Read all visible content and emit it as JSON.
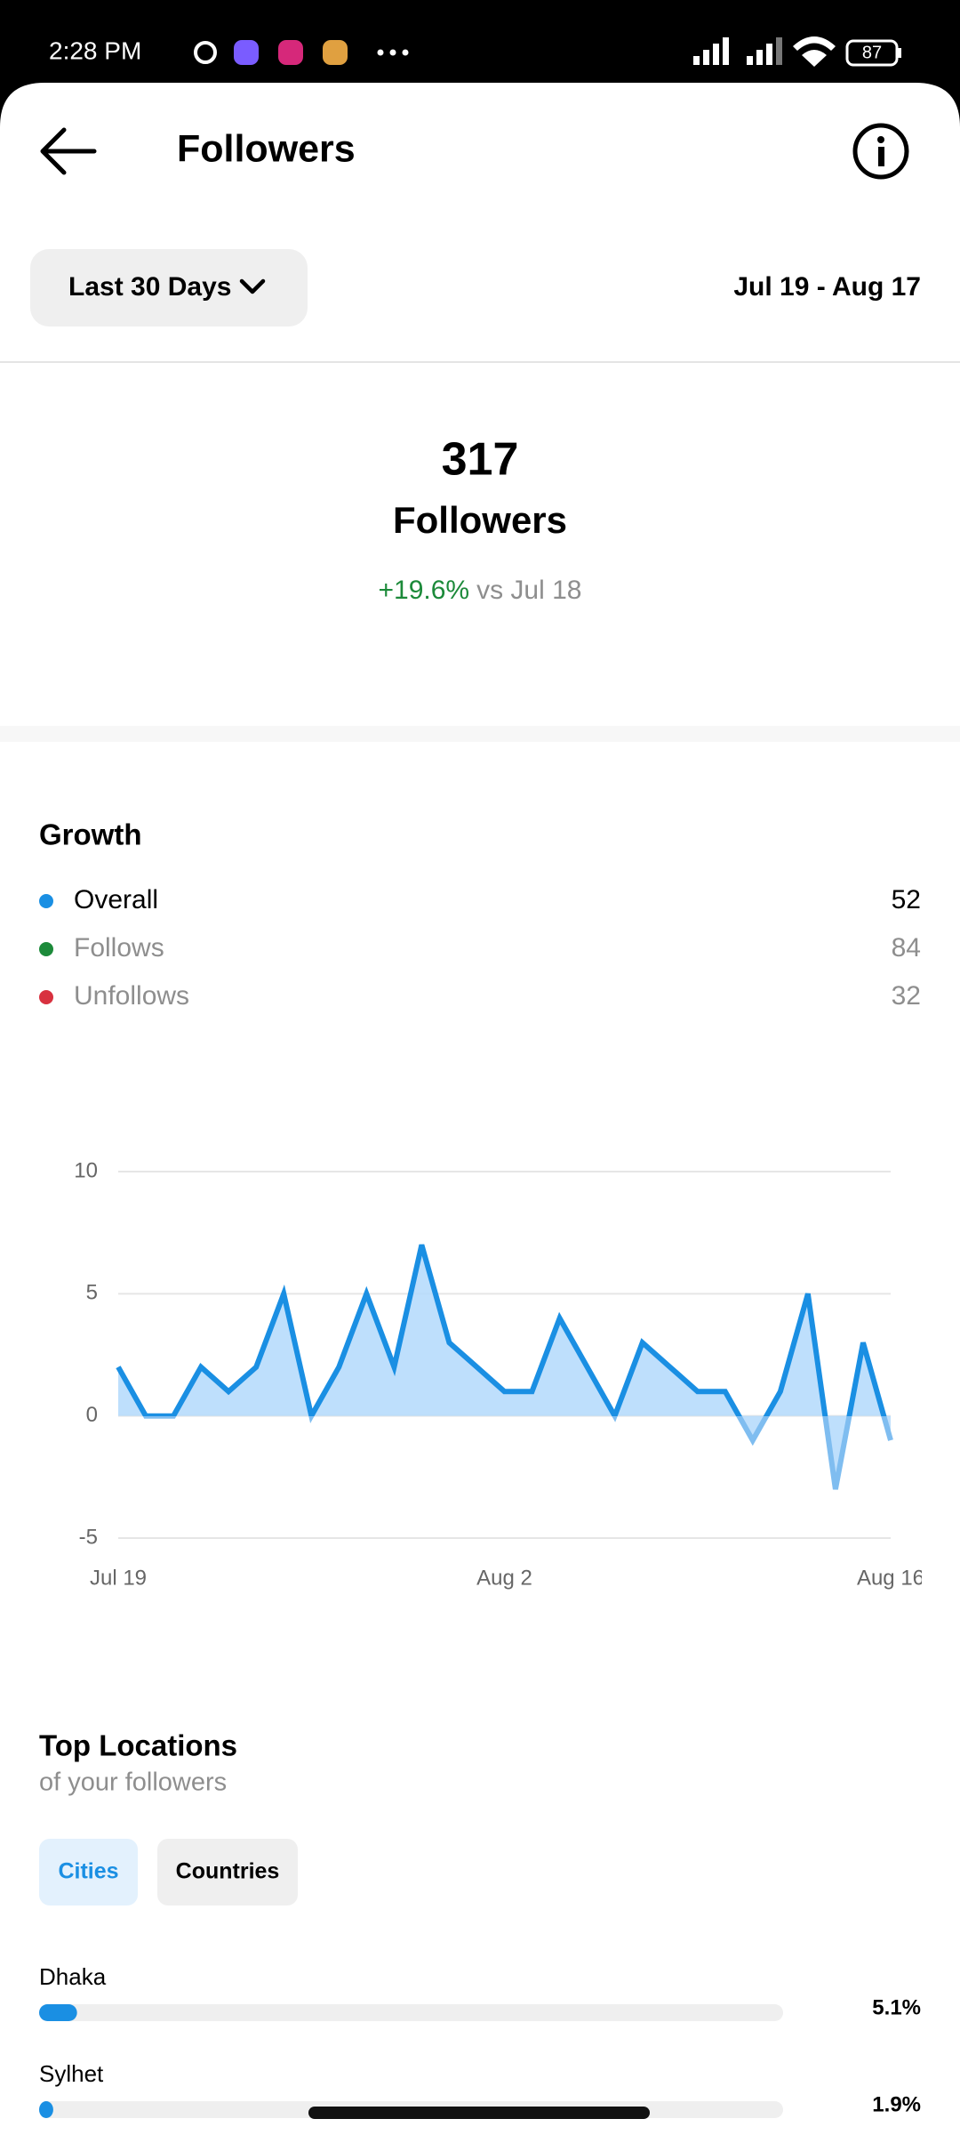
{
  "status_bar": {
    "time": "2:28 PM",
    "battery": "87"
  },
  "header": {
    "title": "Followers"
  },
  "filter": {
    "period": "Last 30 Days",
    "date_range": "Jul 19 - Aug 17"
  },
  "summary": {
    "count": "317",
    "label": "Followers",
    "change": "+19.6%",
    "comparison": "vs Jul 18"
  },
  "growth": {
    "title": "Growth",
    "legend": [
      {
        "name": "Overall",
        "value": 52,
        "color": "#1a8fe3"
      },
      {
        "name": "Follows",
        "value": 84,
        "color": "#1c8a3a"
      },
      {
        "name": "Unfollows",
        "value": 32,
        "color": "#d8313f"
      }
    ]
  },
  "chart_data": {
    "type": "line",
    "categories": [
      "Jul 19",
      null,
      null,
      null,
      null,
      null,
      null,
      null,
      null,
      null,
      null,
      null,
      null,
      null,
      "Aug 2",
      null,
      null,
      null,
      null,
      null,
      null,
      null,
      null,
      null,
      null,
      null,
      null,
      null,
      "Aug 16"
    ],
    "values": [
      2,
      0,
      0,
      2,
      1,
      2,
      5,
      0,
      2,
      5,
      2,
      7,
      3,
      2,
      1,
      1,
      4,
      2,
      0,
      3,
      2,
      1,
      1,
      -1,
      1,
      5,
      -3,
      3,
      -1
    ],
    "color": "#1a8fe3",
    "negative_color": "#7fbdf0",
    "fill_color": "#b3d9fb",
    "ylim": [
      -5,
      10
    ],
    "yticks": [
      -5,
      0,
      5,
      10
    ],
    "grid": true
  },
  "locations": {
    "title": "Top Locations",
    "subtitle": "of your followers",
    "tabs": [
      "Cities",
      "Countries"
    ],
    "xlim": [
      0,
      100
    ],
    "color": "#1a8fe3",
    "items": [
      {
        "name": "Dhaka",
        "value": 5.1,
        "value_label": "5.1%"
      },
      {
        "name": "Sylhet",
        "value": 1.9,
        "value_label": "1.9%"
      }
    ]
  }
}
